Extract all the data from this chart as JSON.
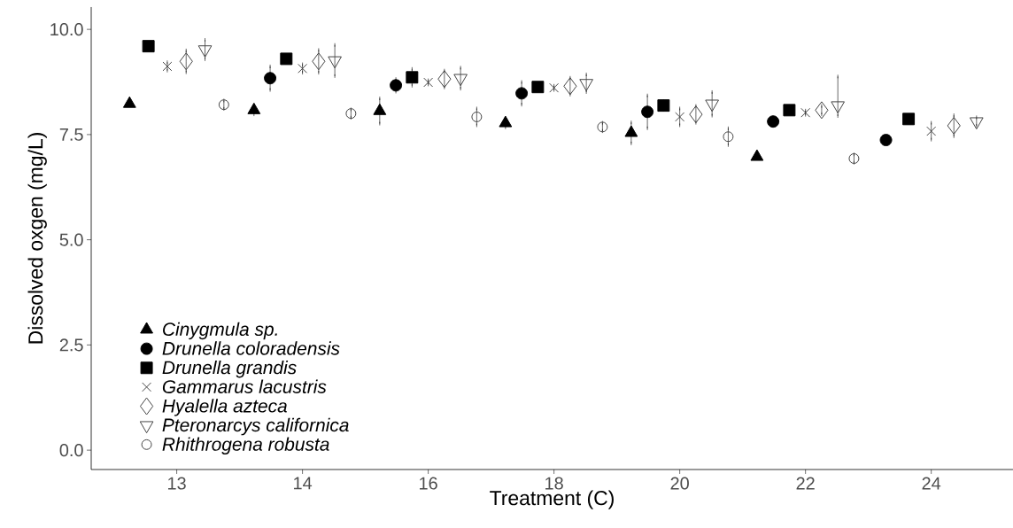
{
  "chart_data": {
    "type": "scatter",
    "xlabel": "Treatment (C)",
    "ylabel": "Dissolved oxgen (mg/L)",
    "categories": [
      "13",
      "14",
      "16",
      "18",
      "20",
      "22",
      "24"
    ],
    "ylim": [
      -0.46,
      10.53
    ],
    "yticks": [
      {
        "value": 0,
        "label": "0.0"
      },
      {
        "value": 2.5,
        "label": "2.5"
      },
      {
        "value": 5,
        "label": "5.0"
      },
      {
        "value": 7.5,
        "label": "7.5"
      },
      {
        "value": 10,
        "label": "10.0"
      }
    ],
    "legend": "bottom left",
    "grid": false,
    "series": [
      {
        "name": "Cinygmula sp.",
        "color": "#000000",
        "marker": "triangle",
        "values": [
          8.23,
          8.08,
          8.06,
          7.77,
          7.54,
          6.97,
          null
        ],
        "errors": [
          null,
          0.1,
          0.3,
          0.1,
          0.25,
          null,
          null
        ]
      },
      {
        "name": "Drunella coloradensis",
        "color": "#000000",
        "marker": "circle",
        "values": [
          null,
          8.84,
          8.67,
          8.48,
          8.04,
          7.81,
          7.37
        ],
        "errors": [
          null,
          0.28,
          0.15,
          0.27,
          0.39,
          null,
          null
        ]
      },
      {
        "name": "Drunella grandis",
        "color": "#000000",
        "marker": "square",
        "values": [
          9.6,
          9.3,
          8.86,
          8.63,
          8.19,
          8.08,
          7.87
        ],
        "errors": [
          0.05,
          null,
          0.2,
          0.05,
          0.1,
          null,
          0.05
        ]
      },
      {
        "name": "Gammarus lacustris",
        "color": "#444444",
        "marker": "cross",
        "values": [
          9.12,
          9.07,
          8.74,
          8.61,
          7.92,
          8.02,
          7.58
        ],
        "errors": [
          0.1,
          0.1,
          0.05,
          0.05,
          0.2,
          0.05,
          0.2
        ]
      },
      {
        "name": "Hyalella azteca",
        "color": "#444444",
        "marker": "diamond-open",
        "values": [
          9.24,
          9.24,
          8.82,
          8.65,
          7.98,
          8.08,
          7.71
        ],
        "errors": [
          0.26,
          0.27,
          0.2,
          0.2,
          0.2,
          0.1,
          0.25
        ]
      },
      {
        "name": "Pteronarcys californica",
        "color": "#444444",
        "marker": "triangle-down-open",
        "values": [
          9.52,
          9.26,
          8.84,
          8.72,
          8.23,
          8.19,
          7.81
        ],
        "errors": [
          0.23,
          0.37,
          0.25,
          0.21,
          0.28,
          [
            7.94,
            8.88
          ],
          0.1
        ]
      },
      {
        "name": "Rhithrogena robusta",
        "color": "#444444",
        "marker": "circle-open",
        "values": [
          8.21,
          8.0,
          7.92,
          7.68,
          7.45,
          6.93,
          null
        ],
        "errors": [
          0.1,
          0.1,
          0.2,
          0.1,
          0.2,
          0.1,
          null
        ]
      }
    ]
  }
}
